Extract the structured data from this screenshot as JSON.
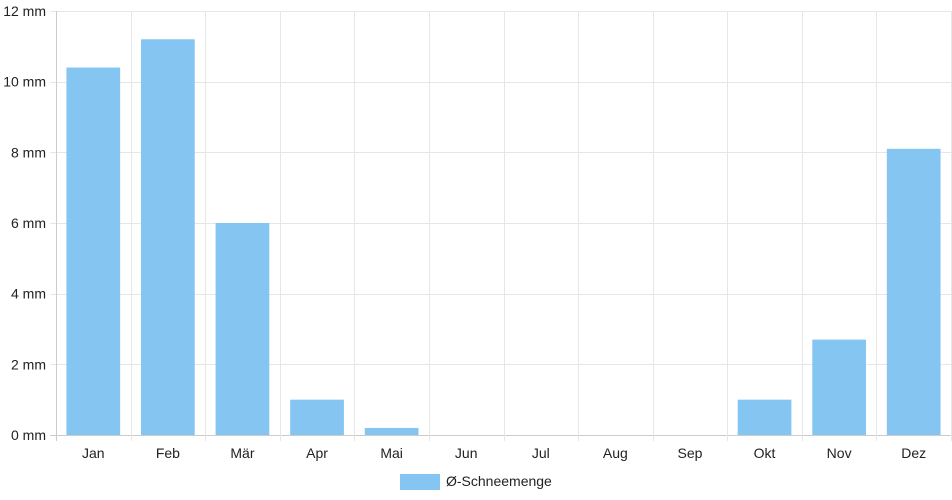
{
  "chart_data": {
    "type": "bar",
    "categories": [
      "Jan",
      "Feb",
      "Mär",
      "Apr",
      "Mai",
      "Jun",
      "Jul",
      "Aug",
      "Sep",
      "Okt",
      "Nov",
      "Dez"
    ],
    "series": [
      {
        "name": "Ø-Schneemenge",
        "values": [
          10.4,
          11.2,
          6.0,
          1.0,
          0.2,
          0,
          0,
          0,
          0,
          1.0,
          2.7,
          8.1
        ]
      }
    ],
    "ylim": [
      0,
      12
    ],
    "yticks": [
      0,
      2,
      4,
      6,
      8,
      10,
      12
    ],
    "ytick_suffix": " mm",
    "grid": true,
    "legend_position": "bottom-center",
    "colors": {
      "bar": "#85c5f1",
      "grid": "#e6e6e6",
      "axis": "#cccccc"
    }
  }
}
